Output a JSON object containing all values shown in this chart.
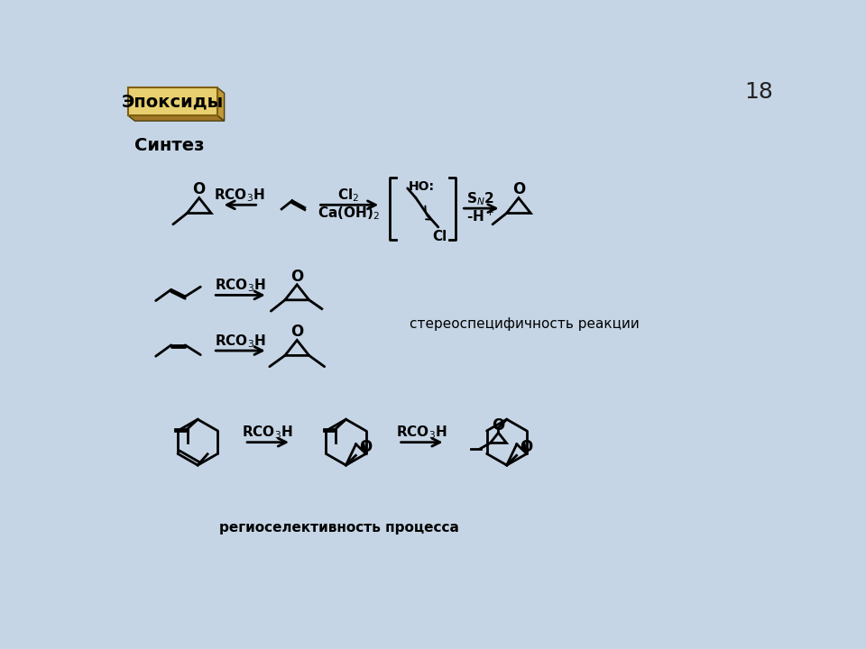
{
  "title": "Эпоксиды",
  "subtitle": "Синтез",
  "page_number": "18",
  "bg_color": "#c5d5e5",
  "text_color": "#000000",
  "stereo_text": "стереоспецифичность реакции",
  "regio_text": "региоселективность процесса",
  "box_face": "#e8d070",
  "box_bottom": "#a07828",
  "box_right": "#c09838"
}
